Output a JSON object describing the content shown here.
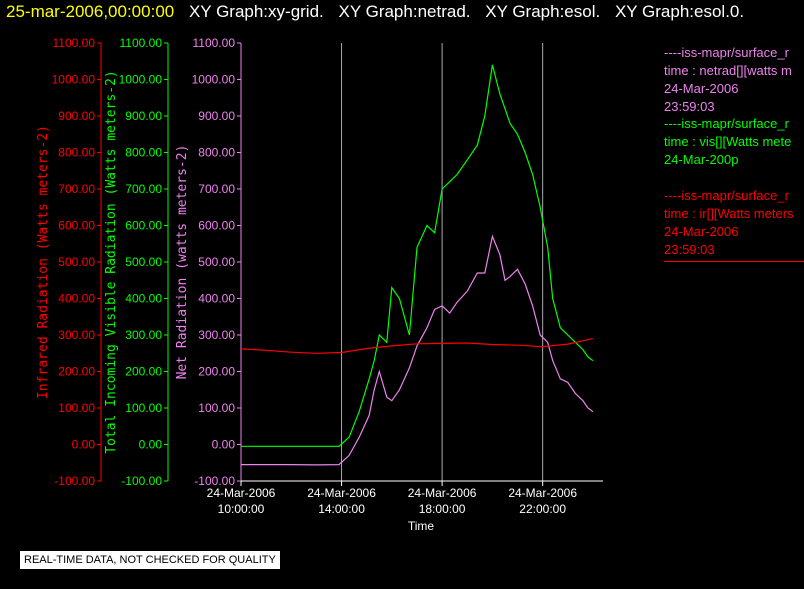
{
  "header": {
    "date": "25-mar-2006,00:00:00",
    "graphs": [
      "XY Graph:xy-grid.",
      "XY Graph:netrad.",
      "XY Graph:esol.",
      "XY Graph:esol.0."
    ]
  },
  "notice": "REAL-TIME DATA, NOT CHECKED FOR QUALITY",
  "legend": [
    {
      "color": "#ee82ee",
      "lines": [
        "----iss-mapr/surface_r",
        "time : netrad[][watts m",
        "24-Mar-2006",
        "23:59:03"
      ]
    },
    {
      "color": "#00ff00",
      "lines": [
        "----iss-mapr/surface_r",
        "time : vis[][Watts mete",
        "24-Mar-200p"
      ]
    },
    {
      "color": "#ff0000",
      "lines": [
        "----iss-mapr/surface_r",
        "time : ir[][Watts meters",
        "24-Mar-2006",
        "23:59:03"
      ]
    }
  ],
  "chart_data": {
    "type": "line",
    "xlabel": "Time",
    "x_ticks": [
      {
        "date": "24-Mar-2006",
        "time": "10:00:00"
      },
      {
        "date": "24-Mar-2006",
        "time": "14:00:00"
      },
      {
        "date": "24-Mar-2006",
        "time": "18:00:00"
      },
      {
        "date": "24-Mar-2006",
        "time": "22:00:00"
      }
    ],
    "x_tick_hours": [
      10,
      14,
      18,
      22
    ],
    "xlim_hours": [
      10,
      24.4
    ],
    "ylim": [
      -100,
      1100
    ],
    "y_ticks": [
      "1100.00",
      "1000.00",
      "900.00",
      "800.00",
      "700.00",
      "600.00",
      "500.00",
      "400.00",
      "300.00",
      "200.00",
      "100.00",
      "0.00",
      "-100.00"
    ],
    "axes": [
      {
        "label": "Infrared Radiation (Watts meters-2)",
        "color": "#ff0000"
      },
      {
        "label": "Total Incoming Visible Radiation (Watts meters-2)",
        "color": "#00ff00"
      },
      {
        "label": "Net Radiation (watts meters-2)",
        "color": "#ee82ee"
      }
    ],
    "grid": true,
    "series": [
      {
        "color": "#00ff00",
        "x": [
          10,
          11,
          12,
          13,
          13.9,
          14.3,
          14.7,
          15.1,
          15.3,
          15.5,
          15.8,
          16.0,
          16.3,
          16.7,
          17.0,
          17.4,
          17.7,
          18.0,
          18.3,
          18.6,
          19.0,
          19.4,
          19.7,
          20.0,
          20.3,
          20.5,
          20.7,
          21.0,
          21.3,
          21.6,
          21.9,
          22.2,
          22.4,
          22.7,
          23.0,
          23.3,
          23.6,
          23.8,
          24.0
        ],
        "values": [
          -5,
          -5,
          -5,
          -5,
          -5,
          20,
          90,
          180,
          230,
          300,
          280,
          430,
          400,
          300,
          540,
          600,
          580,
          700,
          720,
          740,
          780,
          820,
          900,
          1040,
          960,
          920,
          880,
          850,
          800,
          740,
          650,
          540,
          400,
          320,
          300,
          280,
          260,
          240,
          230
        ]
      },
      {
        "color": "#ee82ee",
        "x": [
          10,
          11,
          12,
          13,
          13.9,
          14.3,
          14.7,
          15.1,
          15.3,
          15.5,
          15.8,
          16.0,
          16.3,
          16.7,
          17.0,
          17.4,
          17.7,
          18.0,
          18.3,
          18.6,
          19.0,
          19.4,
          19.7,
          20.0,
          20.3,
          20.5,
          20.7,
          21.0,
          21.3,
          21.6,
          21.9,
          22.2,
          22.4,
          22.7,
          23.0,
          23.3,
          23.6,
          23.8,
          24.0
        ],
        "values": [
          -55,
          -55,
          -55,
          -56,
          -55,
          -30,
          20,
          80,
          150,
          200,
          130,
          120,
          150,
          210,
          270,
          320,
          370,
          380,
          360,
          390,
          420,
          470,
          470,
          570,
          520,
          450,
          460,
          480,
          440,
          380,
          300,
          280,
          230,
          180,
          170,
          140,
          120,
          100,
          90
        ]
      },
      {
        "color": "#ff0000",
        "x": [
          10,
          11,
          12,
          13,
          14,
          15,
          16,
          17,
          18,
          19,
          20,
          21,
          22,
          23,
          24
        ],
        "values": [
          262,
          258,
          253,
          250,
          252,
          263,
          270,
          276,
          277,
          278,
          274,
          272,
          268,
          275,
          290
        ]
      }
    ]
  }
}
